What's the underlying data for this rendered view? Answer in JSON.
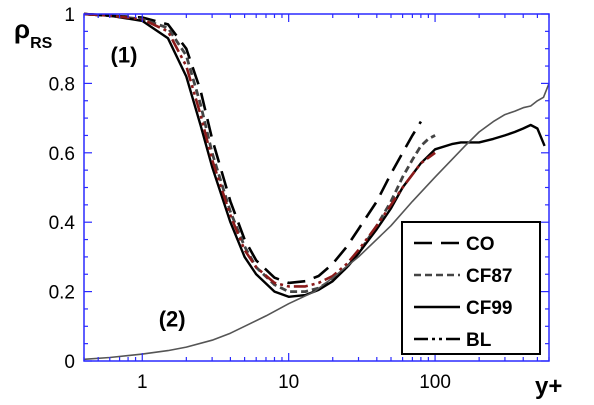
{
  "chart_data": {
    "type": "line",
    "xscale": "log",
    "xlim": [
      0.4,
      600
    ],
    "ylim": [
      0,
      1
    ],
    "xlabel": "y+",
    "ylabel": {
      "main": "ρ",
      "sub": "RS"
    },
    "xticks": [
      {
        "value": 1,
        "label": "1"
      },
      {
        "value": 10,
        "label": "10"
      },
      {
        "value": 100,
        "label": "100"
      }
    ],
    "yticks": [
      {
        "value": 0,
        "label": "0"
      },
      {
        "value": 0.2,
        "label": "0.2"
      },
      {
        "value": 0.4,
        "label": "0.4"
      },
      {
        "value": 0.6,
        "label": "0.6"
      },
      {
        "value": 0.8,
        "label": "0.8"
      },
      {
        "value": 1,
        "label": "1"
      }
    ],
    "grid": false,
    "legend_position": "bottom-right",
    "annotations": [
      {
        "text": "(1)",
        "x": 0.75,
        "y": 0.86
      },
      {
        "text": "(2)",
        "x": 1.6,
        "y": 0.1
      }
    ],
    "series": [
      {
        "name": "CO",
        "color": "#000000",
        "dash": "18,9",
        "width": 2.6,
        "x": [
          0.4,
          0.6,
          1,
          1.5,
          2,
          2.5,
          3,
          4,
          5,
          6,
          8,
          10,
          13,
          16,
          20,
          25,
          30,
          40,
          50,
          60,
          70,
          80
        ],
        "y": [
          1,
          0.995,
          0.99,
          0.97,
          0.9,
          0.78,
          0.64,
          0.46,
          0.35,
          0.29,
          0.24,
          0.225,
          0.23,
          0.245,
          0.28,
          0.33,
          0.38,
          0.46,
          0.54,
          0.6,
          0.65,
          0.69
        ]
      },
      {
        "name": "CF87",
        "color": "#444444",
        "dash": "7,4",
        "width": 2.8,
        "x": [
          0.4,
          0.6,
          1,
          1.5,
          2,
          2.5,
          3,
          4,
          5,
          6,
          8,
          10,
          13,
          16,
          20,
          25,
          30,
          40,
          50,
          60,
          70,
          80,
          90,
          100
        ],
        "y": [
          1,
          0.995,
          0.985,
          0.96,
          0.88,
          0.74,
          0.6,
          0.43,
          0.33,
          0.27,
          0.22,
          0.2,
          0.2,
          0.21,
          0.235,
          0.27,
          0.31,
          0.39,
          0.46,
          0.53,
          0.58,
          0.62,
          0.64,
          0.65
        ]
      },
      {
        "name": "CF99",
        "color": "#000000",
        "dash": "",
        "width": 2.4,
        "x": [
          0.4,
          0.6,
          1,
          1.5,
          2,
          2.5,
          3,
          4,
          5,
          6,
          8,
          10,
          13,
          16,
          20,
          25,
          30,
          40,
          50,
          60,
          80,
          100,
          130,
          150,
          200,
          250,
          300,
          350,
          400,
          450,
          500,
          560
        ],
        "y": [
          1,
          0.995,
          0.98,
          0.93,
          0.82,
          0.68,
          0.56,
          0.4,
          0.3,
          0.25,
          0.2,
          0.185,
          0.19,
          0.205,
          0.23,
          0.27,
          0.31,
          0.38,
          0.44,
          0.5,
          0.57,
          0.61,
          0.625,
          0.63,
          0.63,
          0.64,
          0.65,
          0.66,
          0.67,
          0.68,
          0.67,
          0.62
        ]
      },
      {
        "name": "BL",
        "color": "#8b1a1a",
        "dash": "14,4,3,4,3,4",
        "width": 2.6,
        "x": [
          0.4,
          0.6,
          1,
          1.5,
          2,
          2.5,
          3,
          4,
          5,
          6,
          8,
          10,
          13,
          16,
          20,
          25,
          30,
          40,
          50,
          60,
          80,
          100
        ],
        "y": [
          1,
          0.995,
          0.985,
          0.95,
          0.85,
          0.71,
          0.58,
          0.42,
          0.32,
          0.27,
          0.225,
          0.215,
          0.215,
          0.225,
          0.245,
          0.28,
          0.32,
          0.39,
          0.45,
          0.5,
          0.57,
          0.6
        ]
      },
      {
        "name": "",
        "color": "#555555",
        "dash": "",
        "width": 1.6,
        "x": [
          0.4,
          0.6,
          1,
          1.5,
          2,
          3,
          4,
          5,
          7,
          10,
          15,
          20,
          30,
          50,
          70,
          100,
          130,
          160,
          200,
          250,
          300,
          350,
          400,
          450,
          500,
          550,
          600
        ],
        "y": [
          0.005,
          0.01,
          0.02,
          0.03,
          0.04,
          0.06,
          0.08,
          0.1,
          0.13,
          0.165,
          0.2,
          0.24,
          0.3,
          0.39,
          0.46,
          0.53,
          0.58,
          0.62,
          0.66,
          0.69,
          0.71,
          0.72,
          0.73,
          0.735,
          0.75,
          0.76,
          0.8
        ]
      }
    ],
    "colors": {
      "frame": "#2a2aff",
      "tick": "#2a2aff"
    }
  }
}
